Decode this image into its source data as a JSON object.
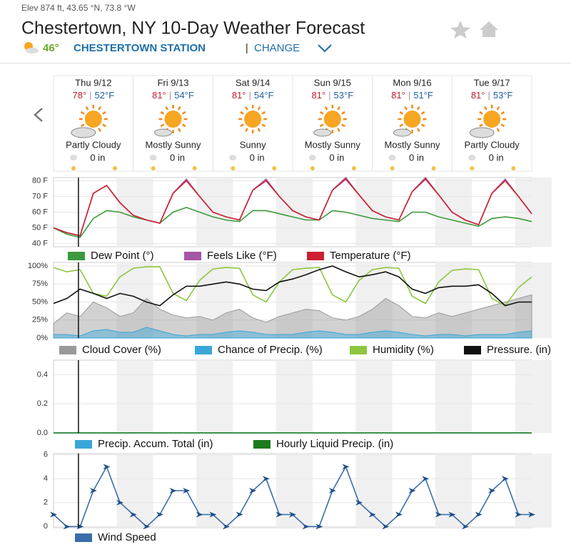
{
  "header": {
    "location_info": "Elev 874 ft, 43.65 °N, 73.8 °W",
    "title": "Chestertown, NY 10-Day Weather Forecast",
    "current_temp": "46°",
    "station": "CHESTERTOWN STATION",
    "change": "CHANGE"
  },
  "days": [
    {
      "date": "Thu 9/12",
      "high": "78°",
      "low": "52°F",
      "condition": "Partly Cloudy",
      "precip": "0 in"
    },
    {
      "date": "Fri 9/13",
      "high": "81°",
      "low": "54°F",
      "condition": "Mostly Sunny",
      "precip": "0 in"
    },
    {
      "date": "Sat 9/14",
      "high": "81°",
      "low": "54°F",
      "condition": "Sunny",
      "precip": "0 in"
    },
    {
      "date": "Sun 9/15",
      "high": "81°",
      "low": "53°F",
      "condition": "Mostly Sunny",
      "precip": "0 in"
    },
    {
      "date": "Mon 9/16",
      "high": "81°",
      "low": "51°F",
      "condition": "Mostly Sunny",
      "precip": "0 in"
    },
    {
      "date": "Tue 9/17",
      "high": "81°",
      "low": "53°F",
      "condition": "Partly Cloudy",
      "precip": "0 in"
    }
  ],
  "chart_data": [
    {
      "type": "line",
      "x": [
        0,
        4,
        8,
        12,
        16,
        20,
        24,
        28,
        32,
        36,
        40,
        44,
        48,
        52,
        56,
        60,
        64,
        68,
        72,
        76,
        80,
        84,
        88,
        92,
        96,
        100,
        104,
        108,
        112,
        116,
        120,
        124,
        128,
        132,
        136,
        140,
        144
      ],
      "xlim": [
        0,
        144
      ],
      "ylim": [
        38,
        82
      ],
      "yticks": [
        {
          "value": 40,
          "label": "40 F"
        },
        {
          "value": 50,
          "label": "50 F"
        },
        {
          "value": 60,
          "label": "60 F"
        },
        {
          "value": 70,
          "label": "70 F"
        },
        {
          "value": 80,
          "label": "80 F"
        }
      ],
      "series": [
        {
          "name": "Dew Point (°)",
          "color": "#3c9a3c",
          "values": [
            50,
            46,
            44,
            56,
            61,
            60,
            57,
            55,
            53,
            60,
            63,
            60,
            57,
            55,
            54,
            61,
            61,
            59,
            57,
            55,
            55,
            61,
            60,
            58,
            56,
            55,
            54,
            60,
            60,
            57,
            55,
            53,
            51,
            56,
            57,
            56,
            54
          ]
        },
        {
          "name": "Feels Like (°F)",
          "color": "#a457a4",
          "values": [
            50,
            47,
            45,
            72,
            77,
            66,
            58,
            55,
            53,
            72,
            81,
            70,
            60,
            57,
            55,
            74,
            81,
            70,
            61,
            57,
            55,
            74,
            82,
            71,
            61,
            57,
            55,
            73,
            82,
            71,
            60,
            55,
            52,
            72,
            81,
            70,
            59
          ]
        },
        {
          "name": "Temperature (°F)",
          "color": "#cc2030",
          "values": [
            50,
            47,
            45,
            72,
            77,
            66,
            58,
            55,
            53,
            72,
            80,
            70,
            60,
            57,
            55,
            74,
            80,
            70,
            61,
            57,
            55,
            74,
            81,
            71,
            61,
            57,
            55,
            73,
            81,
            71,
            60,
            55,
            52,
            72,
            80,
            70,
            59
          ]
        }
      ]
    },
    {
      "type": "line",
      "x": [
        0,
        4,
        8,
        12,
        16,
        20,
        24,
        28,
        32,
        36,
        40,
        44,
        48,
        52,
        56,
        60,
        64,
        68,
        72,
        76,
        80,
        84,
        88,
        92,
        96,
        100,
        104,
        108,
        112,
        116,
        120,
        124,
        128,
        132,
        136,
        140,
        144
      ],
      "xlim": [
        0,
        144
      ],
      "ylim": [
        0,
        105
      ],
      "yticks": [
        {
          "value": 0,
          "label": "0%"
        },
        {
          "value": 25,
          "label": "25%"
        },
        {
          "value": 50,
          "label": "50%"
        },
        {
          "value": 75,
          "label": "75%"
        },
        {
          "value": 100,
          "label": "100%"
        }
      ],
      "series": [
        {
          "name": "Cloud Cover (%)",
          "color": "#999999",
          "style": "area",
          "values": [
            20,
            35,
            30,
            50,
            42,
            30,
            35,
            55,
            40,
            32,
            28,
            30,
            25,
            35,
            40,
            28,
            22,
            30,
            35,
            40,
            38,
            28,
            25,
            30,
            40,
            55,
            45,
            30,
            28,
            35,
            30,
            35,
            40,
            45,
            50,
            55,
            60
          ]
        },
        {
          "name": "Chance of Precip. (%)",
          "color": "#3aa6d8",
          "style": "area",
          "values": [
            5,
            5,
            3,
            10,
            12,
            8,
            8,
            15,
            10,
            5,
            3,
            5,
            5,
            8,
            10,
            8,
            5,
            5,
            5,
            8,
            10,
            8,
            5,
            5,
            8,
            10,
            8,
            5,
            3,
            5,
            5,
            3,
            5,
            5,
            5,
            8,
            10
          ]
        },
        {
          "name": "Humidity (%)",
          "color": "#8dc63f",
          "values": [
            98,
            92,
            95,
            62,
            58,
            85,
            97,
            99,
            99,
            62,
            52,
            80,
            96,
            98,
            97,
            60,
            50,
            78,
            95,
            97,
            98,
            60,
            50,
            80,
            95,
            98,
            97,
            58,
            48,
            78,
            94,
            96,
            95,
            55,
            45,
            70,
            85
          ]
        },
        {
          "name": "Pressure. (in)",
          "color": "#111111",
          "values": [
            48,
            55,
            68,
            62,
            55,
            62,
            58,
            50,
            45,
            60,
            72,
            72,
            75,
            78,
            75,
            68,
            66,
            78,
            82,
            88,
            95,
            100,
            92,
            85,
            88,
            92,
            85,
            68,
            62,
            70,
            72,
            72,
            74,
            62,
            45,
            50,
            50
          ]
        }
      ]
    },
    {
      "type": "line",
      "x": [
        0,
        4,
        8,
        12,
        16,
        20,
        24,
        28,
        32,
        36,
        40,
        44,
        48,
        52,
        56,
        60,
        64,
        68,
        72,
        76,
        80,
        84,
        88,
        92,
        96,
        100,
        104,
        108,
        112,
        116,
        120,
        124,
        128,
        132,
        136,
        140,
        144
      ],
      "xlim": [
        0,
        144
      ],
      "ylim": [
        0,
        0.5
      ],
      "yticks": [
        {
          "value": 0,
          "label": "0.0"
        },
        0.2,
        0.4
      ],
      "series": [
        {
          "name": "Precip. Accum. Total (in)",
          "color": "#3aa6d8",
          "values": [
            0,
            0,
            0,
            0,
            0,
            0,
            0,
            0,
            0,
            0,
            0,
            0,
            0,
            0,
            0,
            0,
            0,
            0,
            0,
            0,
            0,
            0,
            0,
            0,
            0,
            0,
            0,
            0,
            0,
            0,
            0,
            0,
            0,
            0,
            0,
            0,
            0
          ]
        },
        {
          "name": "Hourly Liquid Precip. (in)",
          "color": "#1d7a1d",
          "values": [
            0,
            0,
            0,
            0,
            0,
            0,
            0,
            0,
            0,
            0,
            0,
            0,
            0,
            0,
            0,
            0,
            0,
            0,
            0,
            0,
            0,
            0,
            0,
            0,
            0,
            0,
            0,
            0,
            0,
            0,
            0,
            0,
            0,
            0,
            0,
            0,
            0
          ]
        }
      ]
    },
    {
      "type": "line",
      "x": [
        0,
        4,
        8,
        12,
        16,
        20,
        24,
        28,
        32,
        36,
        40,
        44,
        48,
        52,
        56,
        60,
        64,
        68,
        72,
        76,
        80,
        84,
        88,
        92,
        96,
        100,
        104,
        108,
        112,
        116,
        120,
        124,
        128,
        132,
        136,
        140,
        144
      ],
      "xlim": [
        0,
        144
      ],
      "ylim": [
        -0.1,
        6.1
      ],
      "yticks": [
        0,
        2,
        4,
        6
      ],
      "series": [
        {
          "name": "Wind Speed",
          "color": "#3a6ea8",
          "markers": true,
          "values": [
            1,
            0,
            0,
            3,
            5,
            2,
            1,
            0,
            1,
            3,
            3,
            1,
            1,
            0,
            1,
            3,
            4,
            1,
            1,
            0,
            0,
            3,
            5,
            2,
            1,
            0,
            1,
            3,
            4,
            1,
            1,
            0,
            1,
            3,
            4,
            1,
            1
          ]
        }
      ]
    }
  ]
}
